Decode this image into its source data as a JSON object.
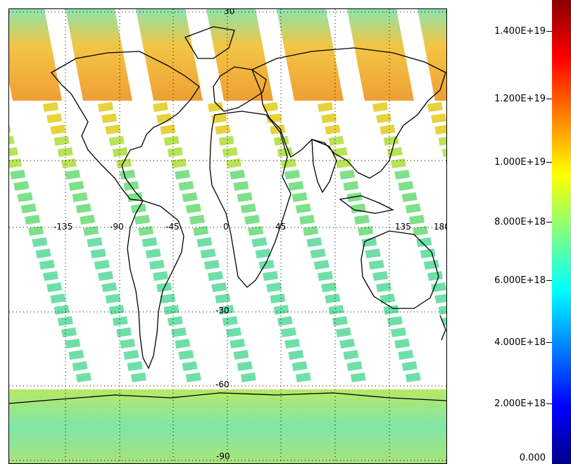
{
  "map": {
    "grid_labels": {
      "top": "30",
      "equator": [
        "-135",
        "-90",
        "-45",
        "0",
        "45",
        "135",
        "180"
      ],
      "minus30": "-30",
      "minus60": "-60",
      "bottom": "-90"
    }
  },
  "colorbar": {
    "labels": [
      "1.400E+19",
      "1.200E+19",
      "1.000E+19",
      "8.000E+18",
      "6.000E+18",
      "4.000E+18",
      "2.000E+18",
      "0.000"
    ],
    "colors": [
      "#8b0000",
      "#ff0000",
      "#ff8000",
      "#ffff00",
      "#80ff80",
      "#00ffff",
      "#0080ff",
      "#0000ff",
      "#00008b"
    ]
  }
}
